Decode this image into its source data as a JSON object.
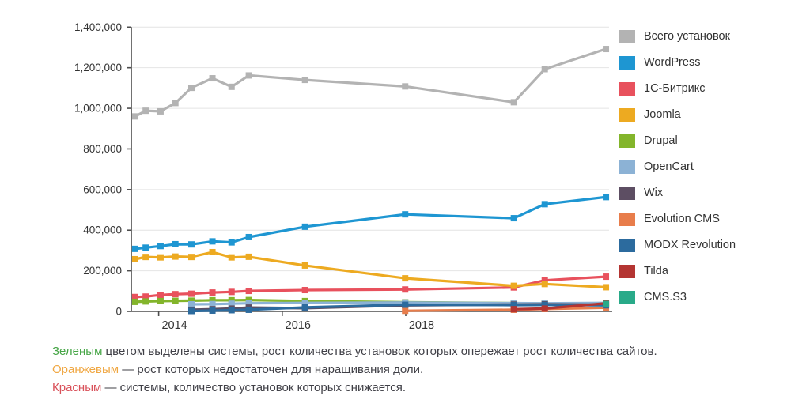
{
  "chart_data": {
    "type": "line",
    "title": "",
    "xlabel": "",
    "ylabel": "",
    "background": "#ffffff",
    "grid": "horizontal",
    "legend_position": "right",
    "y_axis": {
      "min": 0,
      "max": 1400000,
      "tick_interval": 200000,
      "tick_labels": [
        "0",
        "200,000",
        "400,000",
        "600,000",
        "800,000",
        "1,000,000",
        "1,200,000",
        "1,400,000"
      ]
    },
    "x_axis": {
      "tick_years": [
        2014,
        2016,
        2018
      ],
      "tick_labels": [
        "2014",
        "2016",
        "2018"
      ]
    },
    "x": [
      2013.62,
      2013.79,
      2014.03,
      2014.27,
      2014.53,
      2014.87,
      2015.18,
      2015.46,
      2016.37,
      2017.99,
      2019.75,
      2020.25,
      2021.24
    ],
    "series": [
      {
        "name": "Всего установок",
        "color": "#b3b3b3",
        "values": [
          960000,
          988000,
          985000,
          1026000,
          1101000,
          1148000,
          1106000,
          1162000,
          1140000,
          1108000,
          1030000,
          1193000,
          1292000
        ]
      },
      {
        "name": "WordPress",
        "color": "#1e96d2",
        "values": [
          308000,
          314000,
          322000,
          331000,
          330000,
          345000,
          340000,
          366000,
          417000,
          478000,
          459000,
          528000,
          563000
        ]
      },
      {
        "name": "1С-Битрикс",
        "color": "#e8515d",
        "values": [
          71000,
          73000,
          81000,
          85000,
          87000,
          93000,
          96000,
          101000,
          105000,
          108000,
          118000,
          153000,
          171000
        ]
      },
      {
        "name": "Joomla",
        "color": "#edaa21",
        "values": [
          257000,
          268000,
          266000,
          270000,
          268000,
          292000,
          266000,
          269000,
          226000,
          163000,
          126000,
          135000,
          119000
        ]
      },
      {
        "name": "Drupal",
        "color": "#83b52b",
        "values": [
          47000,
          49000,
          51000,
          52000,
          53000,
          55000,
          55000,
          56000,
          51000,
          45000,
          41000,
          39000,
          36000
        ]
      },
      {
        "name": "OpenCart",
        "color": "#8cb2d5",
        "values": [
          null,
          null,
          null,
          null,
          35000,
          36000,
          38000,
          40000,
          42000,
          44000,
          41000,
          40000,
          42000
        ]
      },
      {
        "name": "Wix",
        "color": "#5d4e63",
        "values": [
          null,
          null,
          null,
          null,
          8000,
          11000,
          14000,
          19000,
          16000,
          30000,
          34000,
          35000,
          33000
        ]
      },
      {
        "name": "Evolution CMS",
        "color": "#e87d4b",
        "values": [
          null,
          null,
          null,
          null,
          null,
          null,
          null,
          null,
          null,
          3000,
          8000,
          12000,
          18000
        ]
      },
      {
        "name": "MODX Revolution",
        "color": "#2c6b9e",
        "values": [
          null,
          null,
          null,
          null,
          2000,
          4000,
          6000,
          8000,
          20000,
          33000,
          31000,
          32000,
          30000
        ]
      },
      {
        "name": "Tilda",
        "color": "#b43532",
        "values": [
          null,
          null,
          null,
          null,
          null,
          null,
          null,
          null,
          null,
          null,
          11000,
          14000,
          40000
        ]
      },
      {
        "name": "CMS.S3",
        "color": "#29aa89",
        "values": [
          null,
          null,
          null,
          null,
          null,
          null,
          null,
          null,
          null,
          null,
          null,
          null,
          37000
        ]
      }
    ]
  },
  "footer": {
    "lines": [
      {
        "lead": "Зеленым",
        "color": "#46a546",
        "rest": " цветом выделены системы, рост количества установок которых опережает рост количества сайтов."
      },
      {
        "lead": "Оранжевым",
        "color": "#f0a742",
        "rest": " — рост которых недостаточен для наращивания доли."
      },
      {
        "lead": "Красным",
        "color": "#d9515a",
        "rest": " — системы, количество установок которых снижается."
      }
    ]
  },
  "colors": {
    "grid": "#e4e4e4",
    "axis": "#4d4d4d",
    "axis_text": "#333333"
  }
}
